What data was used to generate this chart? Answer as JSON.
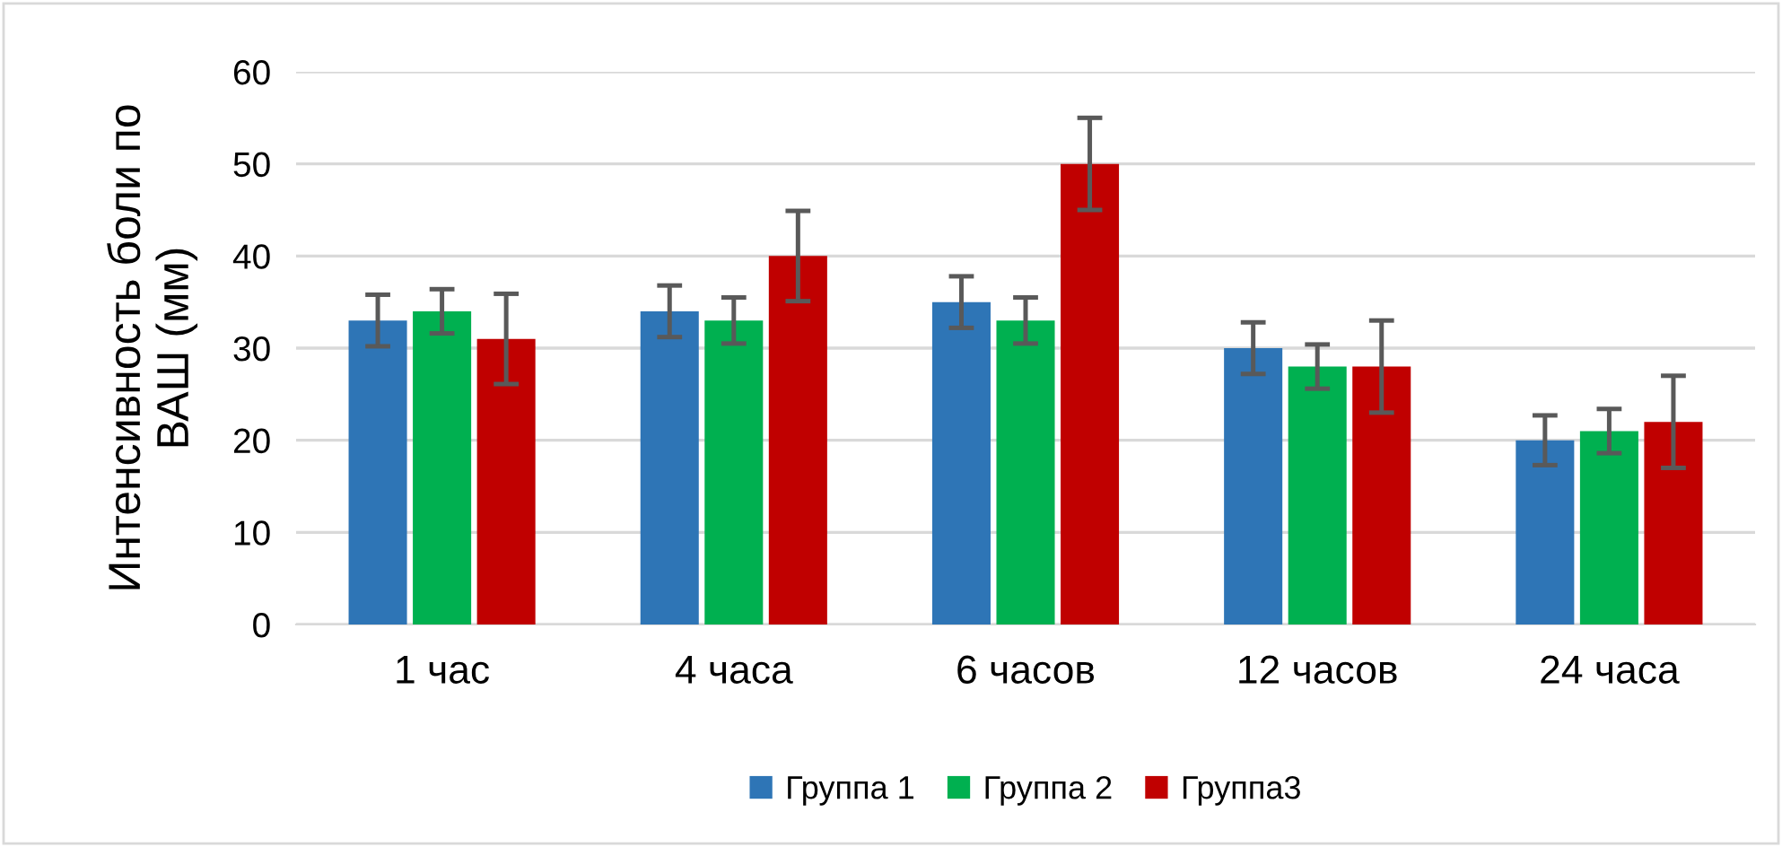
{
  "chart_data": {
    "type": "bar",
    "ylabel": "Интенсивность боли по\nВАШ (мм)",
    "categories": [
      "1 час",
      "4 часа",
      "6 часов",
      "12 часов",
      "24 часа"
    ],
    "series": [
      {
        "name": "Группа 1",
        "color": "#2e75b6",
        "values": [
          33,
          34,
          35,
          30,
          20
        ],
        "errors": [
          2.8,
          2.8,
          2.8,
          2.8,
          2.7
        ]
      },
      {
        "name": "Группа 2",
        "color": "#00b050",
        "values": [
          34,
          33,
          33,
          28,
          21
        ],
        "errors": [
          2.4,
          2.5,
          2.5,
          2.4,
          2.4
        ]
      },
      {
        "name": "Группа3",
        "color": "#c00000",
        "values": [
          31,
          40,
          50,
          28,
          22
        ],
        "errors": [
          4.9,
          4.9,
          5,
          5,
          5
        ]
      }
    ],
    "ylim": [
      0,
      60
    ],
    "yticks": [
      0,
      10,
      20,
      30,
      40,
      50,
      60
    ],
    "grid": "y",
    "legend": "bottom"
  }
}
